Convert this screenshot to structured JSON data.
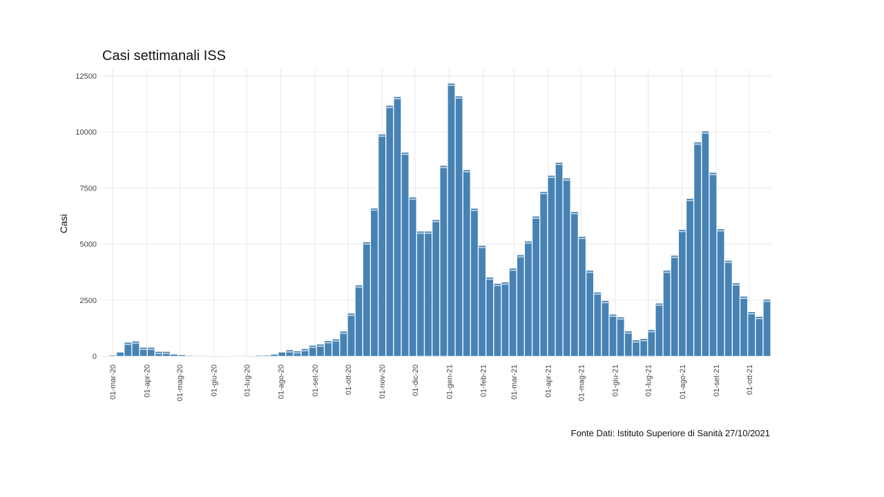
{
  "chart_data": {
    "type": "bar",
    "title": "Casi settimanali ISS",
    "xlabel": "",
    "ylabel": "Casi",
    "caption": "Fonte Dati: Istituto Superiore di Sanità 27/10/2021",
    "ylim": [
      0,
      12500
    ],
    "yticks": [
      0,
      2500,
      5000,
      7500,
      10000,
      12500
    ],
    "xticks": [
      {
        "date": "2020-03-01",
        "label": "01-mar-20"
      },
      {
        "date": "2020-04-01",
        "label": "01-apr-20"
      },
      {
        "date": "2020-05-01",
        "label": "01-mag-20"
      },
      {
        "date": "2020-06-01",
        "label": "01-giu-20"
      },
      {
        "date": "2020-07-01",
        "label": "01-lug-20"
      },
      {
        "date": "2020-08-01",
        "label": "01-ago-20"
      },
      {
        "date": "2020-09-01",
        "label": "01-set-20"
      },
      {
        "date": "2020-10-01",
        "label": "01-ott-20"
      },
      {
        "date": "2020-11-01",
        "label": "01-nov-20"
      },
      {
        "date": "2020-12-01",
        "label": "01-dic-20"
      },
      {
        "date": "2021-01-01",
        "label": "01-gen-21"
      },
      {
        "date": "2021-02-01",
        "label": "01-feb-21"
      },
      {
        "date": "2021-03-01",
        "label": "01-mar-21"
      },
      {
        "date": "2021-04-01",
        "label": "01-apr-21"
      },
      {
        "date": "2021-05-01",
        "label": "01-mag-21"
      },
      {
        "date": "2021-06-01",
        "label": "01-giu-21"
      },
      {
        "date": "2021-07-01",
        "label": "01-lug-21"
      },
      {
        "date": "2021-08-01",
        "label": "01-ago-21"
      },
      {
        "date": "2021-09-01",
        "label": "01-set-21"
      },
      {
        "date": "2021-10-01",
        "label": "01-ott-21"
      }
    ],
    "grid": true,
    "bar_color": "#4682b4",
    "x": [
      "2020-02-23",
      "2020-03-01",
      "2020-03-08",
      "2020-03-15",
      "2020-03-22",
      "2020-03-29",
      "2020-04-05",
      "2020-04-12",
      "2020-04-19",
      "2020-04-26",
      "2020-05-03",
      "2020-05-10",
      "2020-05-17",
      "2020-05-24",
      "2020-05-31",
      "2020-06-07",
      "2020-06-14",
      "2020-06-21",
      "2020-06-28",
      "2020-07-05",
      "2020-07-12",
      "2020-07-19",
      "2020-07-26",
      "2020-08-02",
      "2020-08-09",
      "2020-08-16",
      "2020-08-23",
      "2020-08-30",
      "2020-09-06",
      "2020-09-13",
      "2020-09-20",
      "2020-09-27",
      "2020-10-04",
      "2020-10-11",
      "2020-10-18",
      "2020-10-25",
      "2020-11-01",
      "2020-11-08",
      "2020-11-15",
      "2020-11-22",
      "2020-11-29",
      "2020-12-06",
      "2020-12-13",
      "2020-12-20",
      "2020-12-27",
      "2021-01-03",
      "2021-01-10",
      "2021-01-17",
      "2021-01-24",
      "2021-01-31",
      "2021-02-07",
      "2021-02-14",
      "2021-02-21",
      "2021-02-28",
      "2021-03-07",
      "2021-03-14",
      "2021-03-21",
      "2021-03-28",
      "2021-04-04",
      "2021-04-11",
      "2021-04-18",
      "2021-04-25",
      "2021-05-02",
      "2021-05-09",
      "2021-05-16",
      "2021-05-23",
      "2021-05-30",
      "2021-06-06",
      "2021-06-13",
      "2021-06-20",
      "2021-06-27",
      "2021-07-04",
      "2021-07-11",
      "2021-07-18",
      "2021-07-25",
      "2021-08-01",
      "2021-08-08",
      "2021-08-15",
      "2021-08-22",
      "2021-08-29",
      "2021-09-05",
      "2021-09-12",
      "2021-09-19",
      "2021-09-26",
      "2021-10-03",
      "2021-10-10",
      "2021-10-17"
    ],
    "values": [
      10,
      40,
      175,
      615,
      670,
      390,
      390,
      205,
      205,
      83,
      60,
      30,
      25,
      20,
      10,
      10,
      10,
      15,
      15,
      5,
      35,
      40,
      80,
      175,
      277,
      230,
      330,
      483,
      533,
      686,
      760,
      1110,
      1910,
      3170,
      5090,
      6600,
      9900,
      11180,
      11570,
      9090,
      7090,
      5570,
      5570,
      6085,
      8500,
      12170,
      11600,
      8310,
      6590,
      4935,
      3520,
      3240,
      3300,
      3920,
      4515,
      5130,
      6240,
      7340,
      8060,
      8640,
      7940,
      6445,
      5337,
      3828,
      2853,
      2473,
      1868,
      1745,
      1118,
      718,
      780,
      1180,
      2360,
      3828,
      4495,
      5645,
      7030,
      9545,
      10037,
      8190,
      5675,
      4270,
      3264,
      2668,
      1980,
      1765,
      2535
    ]
  }
}
